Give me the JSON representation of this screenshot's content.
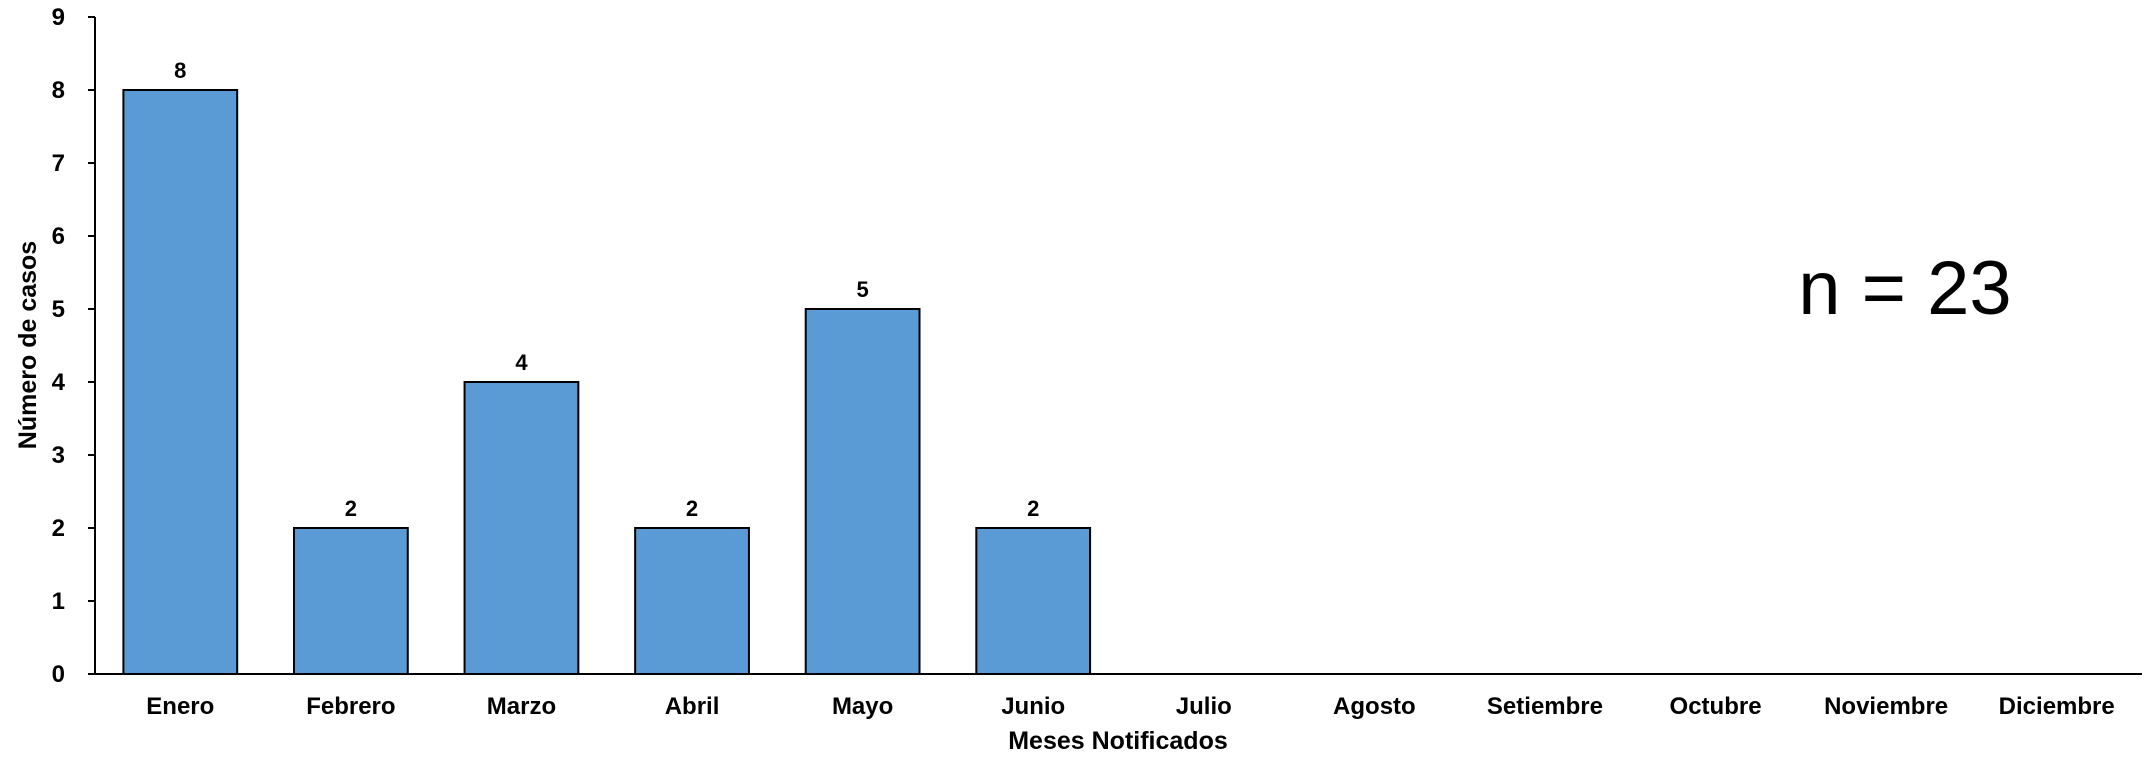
{
  "chart_data": {
    "type": "bar",
    "categories": [
      "Enero",
      "Febrero",
      "Marzo",
      "Abril",
      "Mayo",
      "Junio",
      "Julio",
      "Agosto",
      "Setiembre",
      "Octubre",
      "Noviembre",
      "Diciembre"
    ],
    "values": [
      8,
      2,
      4,
      2,
      5,
      2,
      null,
      null,
      null,
      null,
      null,
      null
    ],
    "data_labels": [
      "8",
      "2",
      "4",
      "2",
      "5",
      "2",
      "",
      "",
      "",
      "",
      "",
      ""
    ],
    "xlabel": "Meses Notificados",
    "ylabel": "Número de casos",
    "ylim": [
      0,
      9
    ],
    "yticks": [
      0,
      1,
      2,
      3,
      4,
      5,
      6,
      7,
      8,
      9
    ],
    "grid": false,
    "legend": "none",
    "annotation": "n = 23",
    "colors": {
      "bar_fill": "#5b9bd5",
      "bar_stroke": "#000000",
      "axis": "#000000"
    }
  }
}
